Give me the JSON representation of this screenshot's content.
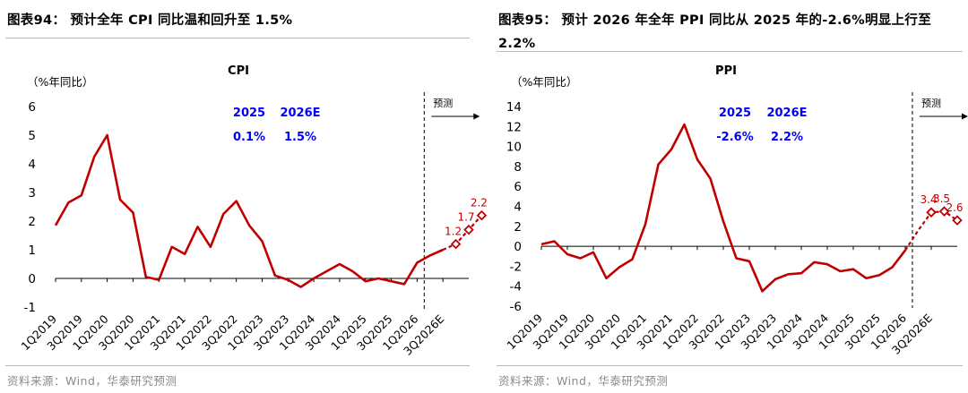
{
  "colors": {
    "line": "#c00000",
    "annotation": "#0000ff",
    "axis": "#000000",
    "source": "#8a8a8a",
    "rule": "#b8b8b8"
  },
  "left": {
    "fig_title": "图表94： 预计全年 CPI 同比温和回升至 1.5%",
    "source": "资料来源：Wind，华泰研究预测"
  },
  "right": {
    "fig_title": "图表95： 预计 2026 年全年 PPI 同比从 2025 年的-2.6%明显上行至 2.2%",
    "source": "资料来源：Wind，华泰研究预测"
  },
  "chart_data": [
    {
      "type": "line",
      "title": "CPI",
      "ylabel": "（%年同比）",
      "ylim": [
        -1,
        6
      ],
      "yticks": [
        -1,
        0,
        1,
        2,
        3,
        4,
        5,
        6
      ],
      "xticklabels": [
        "1Q2019",
        "3Q2019",
        "1Q2020",
        "3Q2020",
        "1Q2021",
        "3Q2021",
        "1Q2022",
        "3Q2022",
        "1Q2023",
        "3Q2023",
        "1Q2024",
        "3Q2024",
        "1Q2025",
        "3Q2025",
        "1Q2026",
        "3Q2026E"
      ],
      "forecast_label": "预测",
      "forecast_start_index": 28,
      "annotation": {
        "years": [
          "2025",
          "2026E"
        ],
        "values": [
          "0.1%",
          "1.5%"
        ]
      },
      "actual_series": {
        "name": "",
        "values": [
          1.85,
          2.65,
          2.9,
          4.25,
          5.0,
          2.75,
          2.3,
          0.05,
          -0.05,
          1.1,
          0.85,
          1.8,
          1.1,
          2.25,
          2.7,
          1.85,
          1.3,
          0.1,
          -0.05,
          -0.3,
          0.0,
          0.25,
          0.5,
          0.25,
          -0.1,
          0.0,
          -0.1,
          -0.2,
          0.55,
          0.8,
          1.0
        ]
      },
      "forecast_series": {
        "name": "",
        "start_index": 30,
        "values": [
          1.0,
          1.2,
          1.7,
          2.2
        ],
        "labels": [
          "",
          "1.2",
          "1.7",
          "2.2"
        ]
      }
    },
    {
      "type": "line",
      "title": "PPI",
      "ylabel": "（%年同比）",
      "ylim": [
        -6,
        14
      ],
      "yticks": [
        -6,
        -4,
        -2,
        0,
        2,
        4,
        6,
        8,
        10,
        12,
        14
      ],
      "xticklabels": [
        "1Q2019",
        "3Q2019",
        "1Q2020",
        "3Q2020",
        "1Q2021",
        "3Q2021",
        "1Q2022",
        "3Q2022",
        "1Q2023",
        "3Q2023",
        "1Q2024",
        "3Q2024",
        "1Q2025",
        "3Q2025",
        "1Q2026",
        "3Q2026E"
      ],
      "forecast_label": "预测",
      "forecast_start_index": 28,
      "annotation": {
        "years": [
          "2025",
          "2026E"
        ],
        "values": [
          "-2.6%",
          "2.2%"
        ]
      },
      "actual_series": {
        "name": "",
        "values": [
          0.2,
          0.5,
          -0.8,
          -1.2,
          -0.6,
          -3.2,
          -2.1,
          -1.3,
          2.2,
          8.2,
          9.7,
          12.2,
          8.7,
          6.8,
          2.5,
          -1.2,
          -1.5,
          -4.5,
          -3.3,
          -2.8,
          -2.7,
          -1.6,
          -1.8,
          -2.5,
          -2.3,
          -3.2,
          -2.9,
          -2.1,
          -0.4
        ]
      },
      "forecast_series": {
        "name": "",
        "start_index": 29,
        "values": [
          1.6,
          3.4,
          3.5,
          2.6
        ],
        "labels": [
          "",
          "3.4",
          "3.5",
          "2.6"
        ]
      }
    }
  ]
}
